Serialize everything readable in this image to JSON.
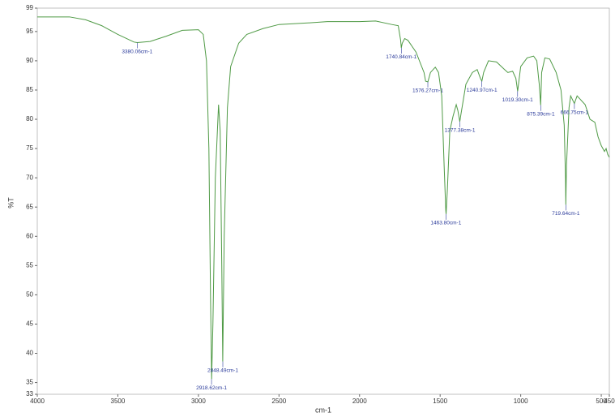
{
  "chart_data": {
    "type": "line",
    "x_label": "cm-1",
    "y_label": "%T",
    "xlim": [
      4000,
      450
    ],
    "ylim": [
      33,
      99
    ],
    "xticks": [
      4000,
      3500,
      3000,
      2500,
      2000,
      1500,
      1000,
      500,
      450
    ],
    "yticks": [
      33,
      35,
      40,
      45,
      50,
      55,
      60,
      65,
      70,
      75,
      80,
      85,
      90,
      95,
      99
    ],
    "x": [
      4000,
      3800,
      3700,
      3600,
      3500,
      3400,
      3380,
      3300,
      3200,
      3100,
      3000,
      2970,
      2950,
      2935,
      2925,
      2918,
      2910,
      2895,
      2875,
      2865,
      2855,
      2849,
      2840,
      2820,
      2800,
      2750,
      2700,
      2600,
      2500,
      2300,
      2200,
      2000,
      1900,
      1800,
      1760,
      1745,
      1741,
      1735,
      1720,
      1700,
      1650,
      1600,
      1590,
      1576,
      1560,
      1530,
      1510,
      1490,
      1475,
      1465,
      1463,
      1455,
      1440,
      1420,
      1400,
      1390,
      1378,
      1370,
      1340,
      1300,
      1270,
      1250,
      1241,
      1230,
      1200,
      1150,
      1100,
      1080,
      1050,
      1030,
      1019,
      1000,
      960,
      920,
      900,
      885,
      876,
      870,
      850,
      820,
      780,
      750,
      730,
      722,
      720,
      716,
      700,
      690,
      667,
      650,
      600,
      570,
      540,
      520,
      500,
      480,
      470,
      460,
      450
    ],
    "series": [
      {
        "color": "#4f9a45",
        "values": [
          97.5,
          97.5,
          97,
          96,
          94.5,
          93.2,
          93.1,
          93.3,
          94.2,
          95.2,
          95.3,
          94.5,
          90,
          75,
          50,
          35.6,
          45,
          70,
          82.5,
          78,
          55,
          38.6,
          60,
          82,
          89,
          93,
          94.5,
          95.5,
          96.2,
          96.5,
          96.7,
          96.7,
          96.8,
          96.2,
          96,
          93.5,
          92.2,
          93,
          93.8,
          93.5,
          91.5,
          88,
          86.5,
          86.4,
          88,
          88.9,
          88,
          84,
          72,
          64.5,
          63.8,
          68,
          78,
          80.5,
          82.5,
          81.5,
          79.6,
          81,
          86,
          88,
          88.5,
          87,
          86.5,
          88,
          90,
          89.8,
          88.5,
          88,
          88.2,
          87,
          84.8,
          89,
          90.5,
          90.8,
          90,
          86,
          82.4,
          88,
          90.5,
          90.3,
          88,
          85,
          79,
          70,
          65.4,
          72,
          82,
          84,
          82.7,
          84,
          82.5,
          80,
          79.5,
          77,
          75.5,
          74.5,
          75,
          74,
          73.5
        ]
      }
    ],
    "annotations": [
      {
        "label": "3380.06cm-1",
        "x": 3380.06,
        "y": 93.1
      },
      {
        "label": "2918.62cm-1",
        "x": 2918.62,
        "y": 35.6
      },
      {
        "label": "2848.49cm-1",
        "x": 2848.49,
        "y": 38.6
      },
      {
        "label": "1740.84cm-1",
        "x": 1740.84,
        "y": 92.2
      },
      {
        "label": "1576.27cm-1",
        "x": 1576.27,
        "y": 86.4
      },
      {
        "label": "1463.80cm-1",
        "x": 1463.8,
        "y": 63.8
      },
      {
        "label": "1377.38cm-1",
        "x": 1377.38,
        "y": 79.6
      },
      {
        "label": "1240.97cm-1",
        "x": 1240.97,
        "y": 86.5
      },
      {
        "label": "1019.30cm-1",
        "x": 1019.3,
        "y": 84.8
      },
      {
        "label": "875.39cm-1",
        "x": 875.39,
        "y": 82.4
      },
      {
        "label": "719.64cm-1",
        "x": 719.64,
        "y": 65.4
      },
      {
        "label": "666.75cm-1",
        "x": 666.75,
        "y": 82.7
      }
    ]
  }
}
